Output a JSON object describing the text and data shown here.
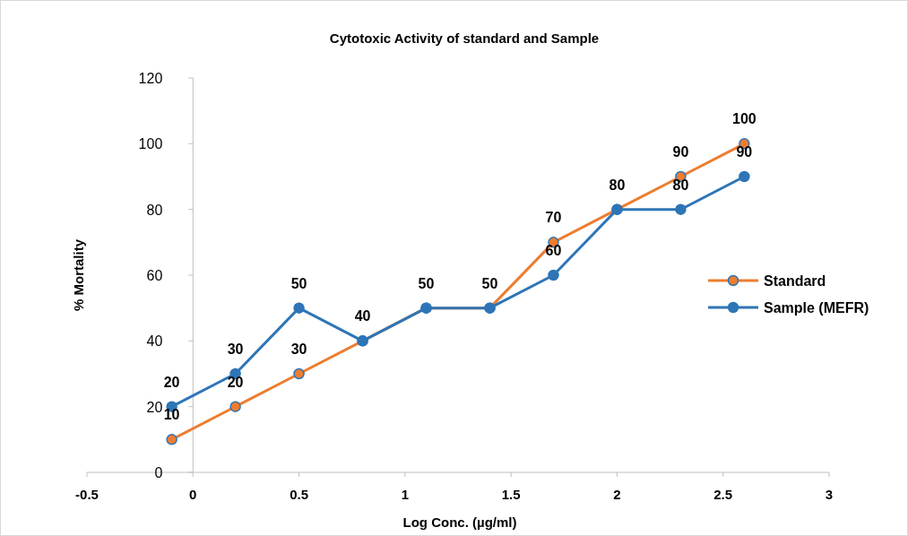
{
  "chart_data": {
    "type": "line",
    "title": "Cytotoxic Activity of standard and Sample",
    "xlabel": "Log Conc. (µg/ml)",
    "ylabel": "% Mortality",
    "x": [
      -0.1,
      0.2,
      0.5,
      0.8,
      1.1,
      1.4,
      1.7,
      2.0,
      2.3,
      2.6
    ],
    "series": [
      {
        "name": "Standard",
        "color": "#ed7d31",
        "values": [
          10,
          20,
          30,
          40,
          50,
          50,
          70,
          80,
          90,
          100
        ],
        "value_labels": [
          "10",
          "20",
          "30",
          "40",
          "50",
          "50",
          "70",
          "80",
          "90",
          "100"
        ]
      },
      {
        "name": "Sample (MEFR)",
        "color": "#2e75b6",
        "values": [
          20,
          30,
          50,
          40,
          50,
          50,
          60,
          80,
          80,
          90
        ],
        "value_labels": [
          "20",
          "30",
          "50",
          null,
          null,
          null,
          "60",
          null,
          "80",
          "90"
        ]
      }
    ],
    "xlim": [
      -0.5,
      3
    ],
    "xticks": [
      -0.5,
      0,
      0.5,
      1,
      1.5,
      2,
      2.5,
      3
    ],
    "ylim": [
      0,
      120
    ],
    "yticks": [
      0,
      20,
      40,
      60,
      80,
      100,
      120
    ],
    "marker": "circle",
    "legend": "right",
    "grid": false
  }
}
